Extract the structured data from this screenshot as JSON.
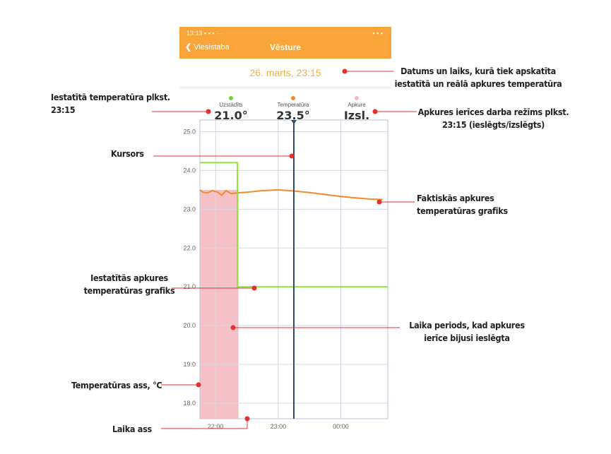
{
  "statusbar": {
    "time": "13:13",
    "icons_left": "▪ ▪ ▪ ···",
    "icons_right": "▪ ▪ ▪"
  },
  "appbar": {
    "back_label": "Viesistaba",
    "title": "Vēsture"
  },
  "selected_datetime": "26. marts, 23:15",
  "stats": [
    {
      "label": "Uzstādīts",
      "value": "21.0°",
      "color": "#6ed33a"
    },
    {
      "label": "Temperatūra",
      "value": "23.5°",
      "color": "#f08a2c"
    },
    {
      "label": "Apkure",
      "value": "Izsl.",
      "color": "#f4b6c6"
    }
  ],
  "annotations": {
    "datetime": "Datums un laiks, kurā tiek apskatīta iestatītā un reālā apkures temperatūra",
    "setpoint_time": "Iestatītā temperatūra plkst. 23:15",
    "heating_mode": "Apkures ierīces darba režīms plkst. 23:15 (ieslēgts/izslēgts)",
    "cursor": "Kursors",
    "actual_graph": "Faktiskās apkures temperatūras grafiks",
    "setpoint_graph": "Iestatītās apkures temperatūras grafiks",
    "heating_period": "Laika periods, kad apkures ierīce bijusi ieslēgta",
    "y_axis": "Temperatūras ass, °C",
    "x_axis": "Laika ass"
  },
  "colors": {
    "accent": "#f9a53a",
    "setpoint": "#8fe03a",
    "actual": "#f08a2c",
    "heating": "#f3b6bd",
    "cursor": "#2f4c70",
    "callout": "#e53030"
  },
  "chart_data": {
    "type": "line",
    "y_ticks": [
      "25.0",
      "24.0",
      "23.0",
      "22.0",
      "21.0",
      "20.0",
      "19.0",
      "18.0"
    ],
    "x_ticks": [
      "22:00",
      "23:00",
      "00:00"
    ],
    "ylim": [
      17.6,
      25.3
    ],
    "xlim": [
      "21:45",
      "00:45"
    ],
    "cursor_time": "23:15",
    "grid": true,
    "series": [
      {
        "x": [
          "21:45",
          "21:48",
          "21:52",
          "21:57",
          "22:02",
          "22:06",
          "22:10",
          "22:15",
          "22:20",
          "22:30",
          "22:45",
          "23:00",
          "23:15",
          "23:30",
          "23:45",
          "00:00",
          "00:15",
          "00:30",
          "00:40"
        ],
        "y": [
          23.5,
          23.44,
          23.42,
          23.48,
          23.44,
          23.36,
          23.48,
          23.4,
          23.42,
          23.44,
          23.48,
          23.5,
          23.47,
          23.43,
          23.38,
          23.33,
          23.29,
          23.26,
          23.25
        ]
      },
      {
        "x": [
          "21:45",
          "22:21",
          "22:21",
          "22:25",
          "00:45"
        ],
        "y": [
          24.2,
          24.2,
          21.0,
          21.0,
          21.0
        ]
      }
    ],
    "heating_on": {
      "start": "21:45",
      "end": "22:22"
    }
  }
}
